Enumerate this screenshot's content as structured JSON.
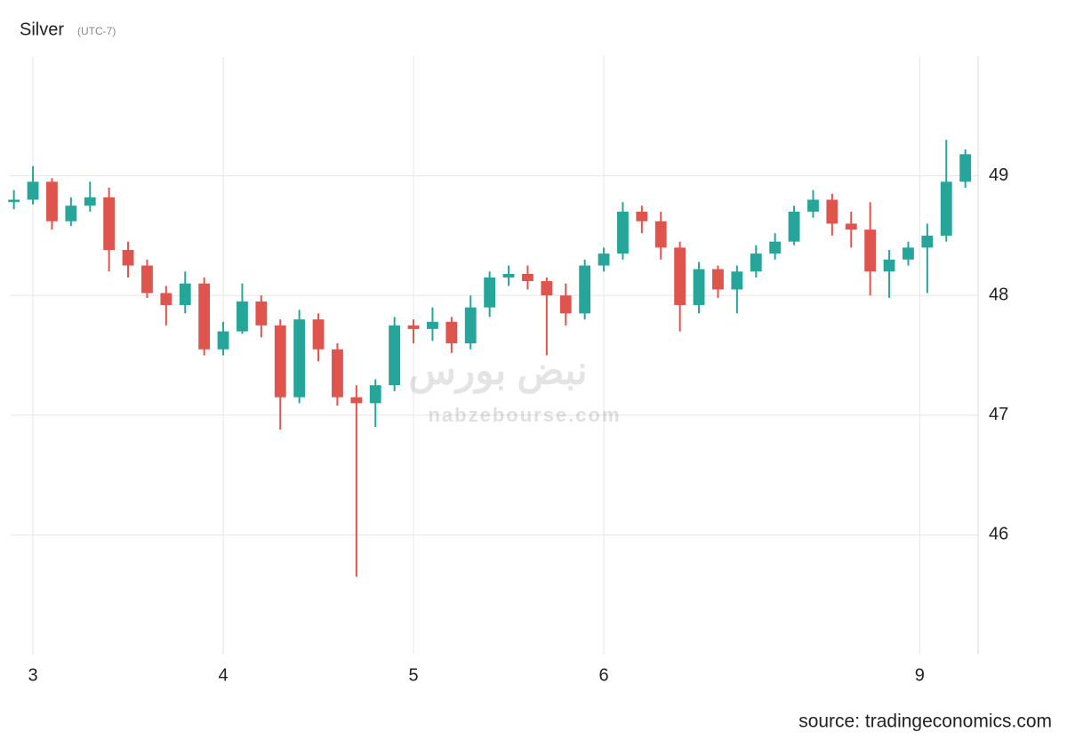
{
  "chart_data": {
    "type": "candlestick",
    "title": "Silver",
    "subtitle": "(UTC-7)",
    "source": "source: tradingeconomics.com",
    "watermark": {
      "logo": "نبض بورس",
      "site": "nabzebourse.com"
    },
    "up_color": "#26a69a",
    "down_color": "#e0544e",
    "grid": true,
    "xlim": [
      -0.117,
      4.967
    ],
    "ylim": [
      45,
      50
    ],
    "xticks": [
      {
        "value": 0,
        "label": "3"
      },
      {
        "value": 1,
        "label": "4"
      },
      {
        "value": 2,
        "label": "5"
      },
      {
        "value": 3,
        "label": "6"
      },
      {
        "value": 4.66,
        "label": "9"
      }
    ],
    "yticks": [
      46,
      47,
      48,
      49
    ],
    "x": [
      -0.1,
      0,
      0.1,
      0.2,
      0.3,
      0.4,
      0.5,
      0.6,
      0.7,
      0.8,
      0.9,
      1,
      1.1,
      1.2,
      1.3,
      1.4,
      1.5,
      1.6,
      1.7,
      1.8,
      1.9,
      2,
      2.1,
      2.2,
      2.3,
      2.4,
      2.5,
      2.6,
      2.7,
      2.8,
      2.9,
      3,
      3.1,
      3.2,
      3.3,
      3.4,
      3.5,
      3.6,
      3.7,
      3.8,
      3.9,
      4,
      4.1,
      4.2,
      4.3,
      4.4,
      4.5,
      4.6,
      4.7,
      4.8,
      4.9
    ],
    "open": [
      48.78,
      48.8,
      48.95,
      48.62,
      48.75,
      48.82,
      48.38,
      48.25,
      48.02,
      47.92,
      48.1,
      47.55,
      47.7,
      47.95,
      47.75,
      47.15,
      47.8,
      47.55,
      47.15,
      47.1,
      47.25,
      47.75,
      47.72,
      47.78,
      47.6,
      47.9,
      48.15,
      48.18,
      48.12,
      48.0,
      47.85,
      48.25,
      48.35,
      48.7,
      48.62,
      48.4,
      47.92,
      48.22,
      48.05,
      48.2,
      48.35,
      48.45,
      48.7,
      48.8,
      48.6,
      48.55,
      48.2,
      48.3,
      48.4,
      48.5,
      48.95
    ],
    "high": [
      48.88,
      49.08,
      48.98,
      48.82,
      48.95,
      48.9,
      48.45,
      48.3,
      48.08,
      48.2,
      48.15,
      47.78,
      48.1,
      48.0,
      47.8,
      47.88,
      47.85,
      47.6,
      47.25,
      47.3,
      47.82,
      47.8,
      47.9,
      47.82,
      48.0,
      48.2,
      48.25,
      48.25,
      48.15,
      48.1,
      48.3,
      48.4,
      48.78,
      48.75,
      48.7,
      48.45,
      48.28,
      48.25,
      48.25,
      48.42,
      48.52,
      48.75,
      48.88,
      48.85,
      48.7,
      48.78,
      48.38,
      48.45,
      48.6,
      49.3,
      49.22
    ],
    "low": [
      48.72,
      48.76,
      48.55,
      48.58,
      48.7,
      48.2,
      48.15,
      47.98,
      47.75,
      47.85,
      47.5,
      47.5,
      47.68,
      47.65,
      46.88,
      47.1,
      47.45,
      47.08,
      45.65,
      46.9,
      47.2,
      47.6,
      47.62,
      47.52,
      47.55,
      47.82,
      48.08,
      48.05,
      47.5,
      47.75,
      47.8,
      48.2,
      48.3,
      48.52,
      48.3,
      47.7,
      47.85,
      47.98,
      47.85,
      48.15,
      48.3,
      48.42,
      48.65,
      48.5,
      48.4,
      48.0,
      47.98,
      48.25,
      48.02,
      48.45,
      48.9
    ],
    "close": [
      48.8,
      48.95,
      48.62,
      48.75,
      48.82,
      48.38,
      48.25,
      48.02,
      47.92,
      48.1,
      47.55,
      47.7,
      47.95,
      47.75,
      47.15,
      47.8,
      47.55,
      47.15,
      47.1,
      47.25,
      47.75,
      47.72,
      47.78,
      47.6,
      47.9,
      48.15,
      48.18,
      48.12,
      48.0,
      47.85,
      48.25,
      48.35,
      48.7,
      48.62,
      48.4,
      47.92,
      48.22,
      48.05,
      48.2,
      48.35,
      48.45,
      48.7,
      48.8,
      48.6,
      48.55,
      48.2,
      48.3,
      48.4,
      48.5,
      48.95,
      49.18
    ]
  }
}
